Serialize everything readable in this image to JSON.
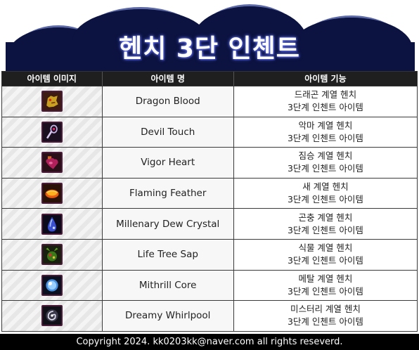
{
  "title": "헨치 3단 인첸트",
  "table": {
    "headers": {
      "image": "아이템 이미지",
      "name": "아이템 명",
      "function": "아이템 기능"
    },
    "rows": [
      {
        "icon": "dragon-blood-icon",
        "name": "Dragon Blood",
        "func1": "드래곤 계열 헨치",
        "func2": "3단계 인첸트 아이템"
      },
      {
        "icon": "devil-touch-icon",
        "name": "Devil Touch",
        "func1": "악마 계열 헨치",
        "func2": "3단계 인첸트 아이템"
      },
      {
        "icon": "vigor-heart-icon",
        "name": "Vigor Heart",
        "func1": "짐승 계열 헨치",
        "func2": "3단계 인첸트 아이템"
      },
      {
        "icon": "flaming-feather-icon",
        "name": "Flaming Feather",
        "func1": "새 계열 헨치",
        "func2": "3단계 인첸트 아이템"
      },
      {
        "icon": "dew-crystal-icon",
        "name": "Millenary Dew Crystal",
        "func1": "곤충 계열 헨치",
        "func2": "3단계 인첸트 아이템"
      },
      {
        "icon": "tree-sap-icon",
        "name": "Life Tree Sap",
        "func1": "식물 계열 헨치",
        "func2": "3단계 인첸트 아이템"
      },
      {
        "icon": "mithrill-core-icon",
        "name": "Mithrill Core",
        "func1": "메탈 계열 헨치",
        "func2": "3단계 인첸트 아이템"
      },
      {
        "icon": "dreamy-whirlpool-icon",
        "name": "Dreamy Whirlpool",
        "func1": "미스터리 계열 헨치",
        "func2": "3단계 인첸트 아이템"
      }
    ]
  },
  "footer": "Copyright 2024. kk0203kk@naver.com all rights reseverd."
}
